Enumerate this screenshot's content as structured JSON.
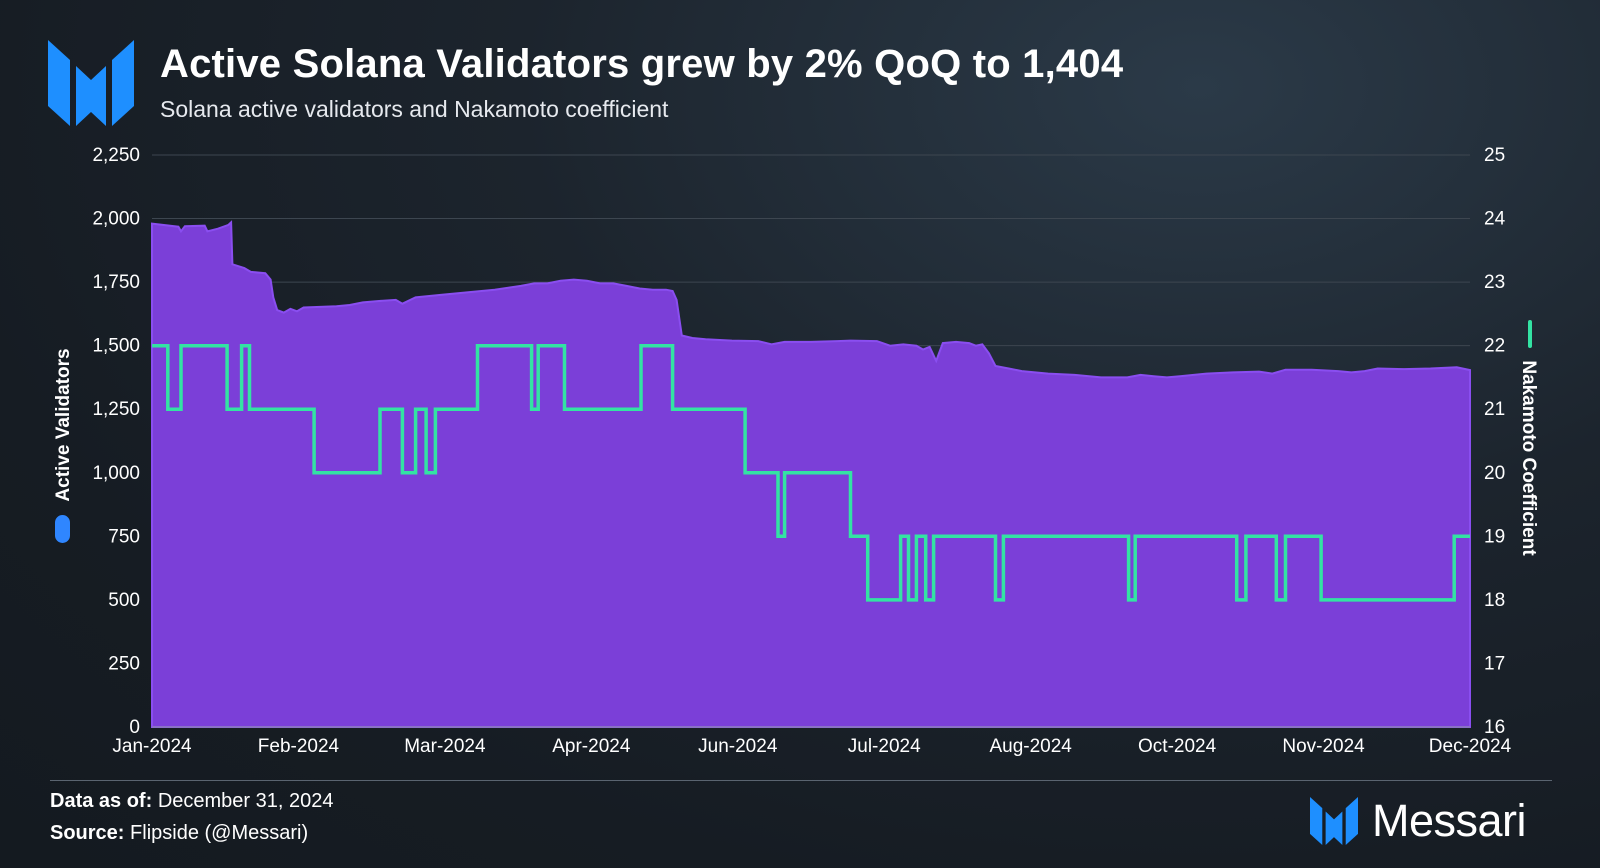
{
  "header": {
    "title": "Active Solana Validators grew by 2% QoQ to 1,404",
    "subtitle": "Solana active validators and Nakamoto coefficient"
  },
  "footer": {
    "data_as_of_label": "Data as of:",
    "data_as_of_value": "December 31, 2024",
    "source_label": "Source:",
    "source_value": "Flipside (@Messari)",
    "brand": "Messari"
  },
  "colors": {
    "validators_fill": "#7b3fd8",
    "nakamoto_line": "#33e3a3",
    "brand_blue": "#1e8fff",
    "legend_validators": "#2f86ff"
  },
  "icons": {
    "logo": "messari-logo-icon"
  },
  "chart_data": {
    "type": "area",
    "left_axis": {
      "label": "Active Validators",
      "ylim": [
        0,
        2250
      ],
      "ticks": [
        "0",
        "250",
        "500",
        "750",
        "1,000",
        "1,250",
        "1,500",
        "1,750",
        "2,000",
        "2,250"
      ]
    },
    "right_axis": {
      "label": "Nakamoto Coefficient",
      "ylim": [
        16,
        25
      ],
      "ticks": [
        "16",
        "17",
        "18",
        "19",
        "20",
        "21",
        "22",
        "23",
        "24",
        "25"
      ]
    },
    "x_ticks": [
      "Jan-2024",
      "Feb-2024",
      "Mar-2024",
      "Apr-2024",
      "Jun-2024",
      "Jul-2024",
      "Aug-2024",
      "Oct-2024",
      "Nov-2024",
      "Dec-2024"
    ],
    "x_range": [
      0,
      1
    ],
    "grid": "horizontal",
    "series": [
      {
        "name": "Active Validators",
        "axis": "left",
        "style": "area",
        "points": [
          [
            0.0,
            1980
          ],
          [
            0.02,
            1968
          ],
          [
            0.022,
            1950
          ],
          [
            0.025,
            1970
          ],
          [
            0.04,
            1972
          ],
          [
            0.042,
            1950
          ],
          [
            0.05,
            1960
          ],
          [
            0.058,
            1975
          ],
          [
            0.06,
            1985
          ],
          [
            0.061,
            1820
          ],
          [
            0.07,
            1805
          ],
          [
            0.075,
            1790
          ],
          [
            0.086,
            1785
          ],
          [
            0.09,
            1760
          ],
          [
            0.092,
            1690
          ],
          [
            0.095,
            1640
          ],
          [
            0.1,
            1630
          ],
          [
            0.105,
            1645
          ],
          [
            0.11,
            1635
          ],
          [
            0.115,
            1650
          ],
          [
            0.14,
            1655
          ],
          [
            0.15,
            1660
          ],
          [
            0.16,
            1670
          ],
          [
            0.17,
            1675
          ],
          [
            0.185,
            1680
          ],
          [
            0.19,
            1665
          ],
          [
            0.2,
            1690
          ],
          [
            0.22,
            1700
          ],
          [
            0.24,
            1710
          ],
          [
            0.26,
            1720
          ],
          [
            0.28,
            1735
          ],
          [
            0.29,
            1745
          ],
          [
            0.3,
            1745
          ],
          [
            0.31,
            1755
          ],
          [
            0.32,
            1760
          ],
          [
            0.33,
            1755
          ],
          [
            0.34,
            1745
          ],
          [
            0.35,
            1745
          ],
          [
            0.36,
            1735
          ],
          [
            0.37,
            1725
          ],
          [
            0.38,
            1720
          ],
          [
            0.39,
            1720
          ],
          [
            0.395,
            1715
          ],
          [
            0.398,
            1680
          ],
          [
            0.402,
            1540
          ],
          [
            0.41,
            1530
          ],
          [
            0.42,
            1525
          ],
          [
            0.44,
            1520
          ],
          [
            0.46,
            1518
          ],
          [
            0.47,
            1505
          ],
          [
            0.48,
            1515
          ],
          [
            0.5,
            1515
          ],
          [
            0.52,
            1518
          ],
          [
            0.53,
            1520
          ],
          [
            0.55,
            1518
          ],
          [
            0.56,
            1500
          ],
          [
            0.57,
            1505
          ],
          [
            0.58,
            1500
          ],
          [
            0.585,
            1485
          ],
          [
            0.59,
            1495
          ],
          [
            0.595,
            1440
          ],
          [
            0.6,
            1510
          ],
          [
            0.61,
            1515
          ],
          [
            0.62,
            1510
          ],
          [
            0.625,
            1500
          ],
          [
            0.63,
            1505
          ],
          [
            0.635,
            1470
          ],
          [
            0.64,
            1420
          ],
          [
            0.65,
            1410
          ],
          [
            0.66,
            1400
          ],
          [
            0.68,
            1390
          ],
          [
            0.7,
            1385
          ],
          [
            0.72,
            1375
          ],
          [
            0.74,
            1375
          ],
          [
            0.75,
            1385
          ],
          [
            0.76,
            1380
          ],
          [
            0.77,
            1375
          ],
          [
            0.78,
            1380
          ],
          [
            0.8,
            1390
          ],
          [
            0.82,
            1395
          ],
          [
            0.84,
            1398
          ],
          [
            0.85,
            1390
          ],
          [
            0.86,
            1405
          ],
          [
            0.88,
            1405
          ],
          [
            0.9,
            1400
          ],
          [
            0.91,
            1395
          ],
          [
            0.92,
            1400
          ],
          [
            0.93,
            1410
          ],
          [
            0.95,
            1408
          ],
          [
            0.97,
            1410
          ],
          [
            0.99,
            1415
          ],
          [
            1.0,
            1404
          ]
        ]
      },
      {
        "name": "Nakamoto Coefficient",
        "axis": "right",
        "style": "step",
        "points": [
          [
            0.0,
            22
          ],
          [
            0.012,
            22
          ],
          [
            0.012,
            21
          ],
          [
            0.022,
            21
          ],
          [
            0.022,
            22
          ],
          [
            0.057,
            22
          ],
          [
            0.057,
            21
          ],
          [
            0.068,
            21
          ],
          [
            0.068,
            22
          ],
          [
            0.074,
            22
          ],
          [
            0.074,
            21
          ],
          [
            0.123,
            21
          ],
          [
            0.123,
            20
          ],
          [
            0.173,
            20
          ],
          [
            0.173,
            21
          ],
          [
            0.19,
            21
          ],
          [
            0.19,
            20
          ],
          [
            0.2,
            20
          ],
          [
            0.2,
            21
          ],
          [
            0.208,
            21
          ],
          [
            0.208,
            20
          ],
          [
            0.215,
            20
          ],
          [
            0.215,
            21
          ],
          [
            0.247,
            21
          ],
          [
            0.247,
            22
          ],
          [
            0.288,
            22
          ],
          [
            0.288,
            21
          ],
          [
            0.293,
            21
          ],
          [
            0.293,
            22
          ],
          [
            0.313,
            22
          ],
          [
            0.313,
            21
          ],
          [
            0.371,
            21
          ],
          [
            0.371,
            22
          ],
          [
            0.395,
            22
          ],
          [
            0.395,
            21
          ],
          [
            0.45,
            21
          ],
          [
            0.45,
            20
          ],
          [
            0.475,
            20
          ],
          [
            0.475,
            19
          ],
          [
            0.48,
            19
          ],
          [
            0.48,
            20
          ],
          [
            0.53,
            20
          ],
          [
            0.53,
            19
          ],
          [
            0.543,
            19
          ],
          [
            0.543,
            18
          ],
          [
            0.568,
            18
          ],
          [
            0.568,
            19
          ],
          [
            0.574,
            19
          ],
          [
            0.574,
            18
          ],
          [
            0.58,
            18
          ],
          [
            0.58,
            19
          ],
          [
            0.587,
            19
          ],
          [
            0.587,
            18
          ],
          [
            0.593,
            18
          ],
          [
            0.593,
            19
          ],
          [
            0.64,
            19
          ],
          [
            0.64,
            18
          ],
          [
            0.646,
            18
          ],
          [
            0.646,
            19
          ],
          [
            0.741,
            19
          ],
          [
            0.741,
            18
          ],
          [
            0.746,
            18
          ],
          [
            0.746,
            19
          ],
          [
            0.823,
            19
          ],
          [
            0.823,
            18
          ],
          [
            0.83,
            18
          ],
          [
            0.83,
            19
          ],
          [
            0.853,
            19
          ],
          [
            0.853,
            18
          ],
          [
            0.86,
            18
          ],
          [
            0.86,
            19
          ],
          [
            0.887,
            19
          ],
          [
            0.887,
            18
          ],
          [
            0.988,
            18
          ],
          [
            0.988,
            19
          ],
          [
            1.0,
            19
          ]
        ]
      }
    ]
  }
}
